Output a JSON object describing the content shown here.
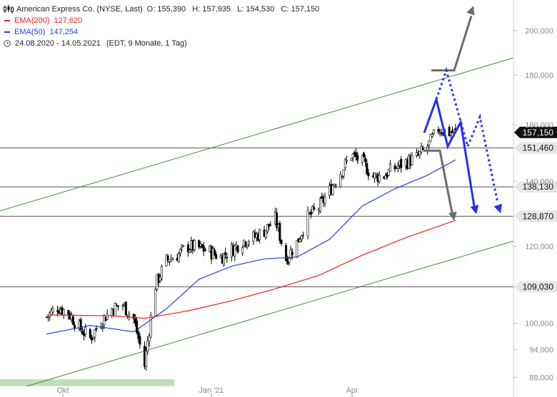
{
  "header": {
    "title": "American Express Co. (NYSE, Last)",
    "ohlc": "O: 155,390   H: 157,935   L: 154,530   C: 157,150",
    "ema200_label": "EMA(200)",
    "ema200_value": "127,620",
    "ema50_label": "EMA(50)",
    "ema50_value": "147,254",
    "range": "24.08.2020 - 14.05.2021",
    "range_note": "(EDT, 9 Monate, 1 Tag)"
  },
  "colors": {
    "price": "#000000",
    "ema200": "#e8231d",
    "ema50": "#2140d8",
    "channel": "#3f8f35",
    "level_line": "#555555",
    "scenario_blue": "#2132f0",
    "scenario_grey": "#6b6b6b",
    "support_zone": "#b9d9b3"
  },
  "chart_data": {
    "type": "line",
    "title": "American Express Co. (NYSE, Last)",
    "x_ticks": [
      "Okt",
      "Jan '21",
      "Apr"
    ],
    "y_ticks": [
      "88,000",
      "94,000",
      "100,000",
      "109,030",
      "120,000",
      "128,870",
      "138,130",
      "140,000",
      "151,460",
      "157,150",
      "160,000",
      "180,000",
      "200,000"
    ],
    "ylim": [
      84,
      215
    ],
    "y_scale": "log",
    "series": [
      {
        "name": "American Express Co.",
        "style": "candlestick",
        "x": [
          "2020-08-24",
          "2020-08-31",
          "2020-09-07",
          "2020-09-14",
          "2020-09-21",
          "2020-09-28",
          "2020-10-05",
          "2020-10-12",
          "2020-10-19",
          "2020-10-26",
          "2020-11-02",
          "2020-11-09",
          "2020-11-16",
          "2020-11-23",
          "2020-11-30",
          "2020-12-07",
          "2020-12-14",
          "2020-12-21",
          "2020-12-28",
          "2021-01-04",
          "2021-01-11",
          "2021-01-18",
          "2021-01-25",
          "2021-02-01",
          "2021-02-08",
          "2021-02-15",
          "2021-02-22",
          "2021-03-01",
          "2021-03-08",
          "2021-03-15",
          "2021-03-22",
          "2021-03-29",
          "2021-04-05",
          "2021-04-12",
          "2021-04-19",
          "2021-04-26",
          "2021-05-03",
          "2021-05-10"
        ],
        "values": [
          101.5,
          104.0,
          102.5,
          99.0,
          96.5,
          100.5,
          103.5,
          104.5,
          101.0,
          90.5,
          109.5,
          116.0,
          117.5,
          120.0,
          119.5,
          118.5,
          117.0,
          119.0,
          121.5,
          122.5,
          124.5,
          128.0,
          116.5,
          121.0,
          128.5,
          131.5,
          137.0,
          143.0,
          149.0,
          146.5,
          141.5,
          142.0,
          144.5,
          146.5,
          148.0,
          152.0,
          158.5,
          157.15
        ]
      },
      {
        "name": "EMA(200)",
        "x": [
          "2020-08-24",
          "2020-10-05",
          "2020-10-26",
          "2020-11-23",
          "2020-12-21",
          "2021-01-18",
          "2021-02-15",
          "2021-03-15",
          "2021-04-12",
          "2021-05-14"
        ],
        "values": [
          102.0,
          101.8,
          101.2,
          103.0,
          105.5,
          108.5,
          112.0,
          117.5,
          122.5,
          127.62
        ]
      },
      {
        "name": "EMA(50)",
        "x": [
          "2020-08-24",
          "2020-09-21",
          "2020-10-19",
          "2020-11-09",
          "2020-11-30",
          "2020-12-21",
          "2021-01-11",
          "2021-02-01",
          "2021-02-22",
          "2021-03-15",
          "2021-04-05",
          "2021-04-26",
          "2021-05-14"
        ],
        "values": [
          97.5,
          99.5,
          98.0,
          103.5,
          111.0,
          114.5,
          116.5,
          117.0,
          122.0,
          132.0,
          137.5,
          142.0,
          147.254
        ]
      }
    ],
    "horizontal_levels": [
      151.46,
      138.13,
      128.87,
      109.03
    ],
    "current_price": 157.15,
    "grid": false,
    "legend_position": "top-left"
  }
}
